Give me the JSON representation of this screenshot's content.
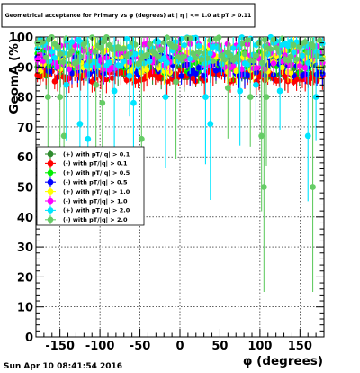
{
  "chart_data": {
    "type": "scatter",
    "title": "Geometrical acceptance for Primary vs φ (degrees) at | η | <= 1.0 at pT > 0.11",
    "xlabel": "φ (degrees)",
    "ylabel": "GeomA (%)",
    "xlim": [
      -180,
      180
    ],
    "ylim": [
      0,
      100
    ],
    "x_ticks": [
      "-150",
      "-100",
      "-50",
      "0",
      "50",
      "100",
      "150"
    ],
    "x_tick_values": [
      -150,
      -100,
      -50,
      0,
      50,
      100,
      150
    ],
    "y_ticks": [
      "0",
      "10",
      "20",
      "30",
      "40",
      "50",
      "60",
      "70",
      "80",
      "90",
      "100"
    ],
    "y_tick_values": [
      0,
      10,
      20,
      30,
      40,
      50,
      60,
      70,
      80,
      90,
      100
    ],
    "grid": true,
    "legend_position": "middle-left",
    "series": [
      {
        "name": "(+) with pT/|q| > 0.1",
        "color": "#2e8b2e",
        "marker": "circle",
        "band": [
          86,
          92
        ]
      },
      {
        "name": "(-) with pT/|q| > 0.1",
        "color": "#ff0000",
        "marker": "circle",
        "band": [
          85,
          89
        ]
      },
      {
        "name": "(+) with pT/|q| > 0.5",
        "color": "#00ee00",
        "marker": "circle",
        "band": [
          88,
          96
        ]
      },
      {
        "name": "(-) with pT/|q| > 0.5",
        "color": "#0000ff",
        "marker": "circle",
        "band": [
          87,
          94
        ]
      },
      {
        "name": "(+) with pT/|q| > 1.0",
        "color": "#ffff00",
        "marker": "circle",
        "band": [
          88,
          97
        ]
      },
      {
        "name": "(-) with pT/|q| > 1.0",
        "color": "#ff00ff",
        "marker": "circle",
        "band": [
          89,
          98
        ]
      },
      {
        "name": "(+) with pT/|q| > 2.0",
        "color": "#00e5ff",
        "marker": "circle",
        "band": [
          90,
          100
        ]
      },
      {
        "name": "(-) with pT/|q| > 2.0",
        "color": "#66cc66",
        "marker": "circle",
        "band": [
          91,
          100
        ]
      }
    ],
    "outliers": [
      {
        "series": 7,
        "x": -165,
        "y": 80
      },
      {
        "series": 7,
        "x": -150,
        "y": 80
      },
      {
        "series": 7,
        "x": -145,
        "y": 67
      },
      {
        "series": 6,
        "x": -142,
        "y": 84
      },
      {
        "series": 6,
        "x": -125,
        "y": 71
      },
      {
        "series": 6,
        "x": -115,
        "y": 66
      },
      {
        "series": 7,
        "x": -105,
        "y": 84
      },
      {
        "series": 7,
        "x": -97,
        "y": 78
      },
      {
        "series": 6,
        "x": -82,
        "y": 82
      },
      {
        "series": 6,
        "x": -63,
        "y": 87
      },
      {
        "series": 6,
        "x": -58,
        "y": 78
      },
      {
        "series": 7,
        "x": -48,
        "y": 66
      },
      {
        "series": 6,
        "x": -18,
        "y": 80
      },
      {
        "series": 7,
        "x": -5,
        "y": 85
      },
      {
        "series": 6,
        "x": 32,
        "y": 80
      },
      {
        "series": 6,
        "x": 38,
        "y": 71
      },
      {
        "series": 7,
        "x": 60,
        "y": 83
      },
      {
        "series": 6,
        "x": 75,
        "y": 82
      },
      {
        "series": 7,
        "x": 88,
        "y": 80
      },
      {
        "series": 6,
        "x": 95,
        "y": 84
      },
      {
        "series": 7,
        "x": 102,
        "y": 67
      },
      {
        "series": 7,
        "x": 105,
        "y": 50
      },
      {
        "series": 7,
        "x": 108,
        "y": 80
      },
      {
        "series": 6,
        "x": 125,
        "y": 82
      },
      {
        "series": 6,
        "x": 160,
        "y": 67
      },
      {
        "series": 7,
        "x": 166,
        "y": 50
      },
      {
        "series": 6,
        "x": 170,
        "y": 80
      }
    ]
  },
  "footer": {
    "timestamp": "Sun Apr 10 08:41:54 2016"
  }
}
